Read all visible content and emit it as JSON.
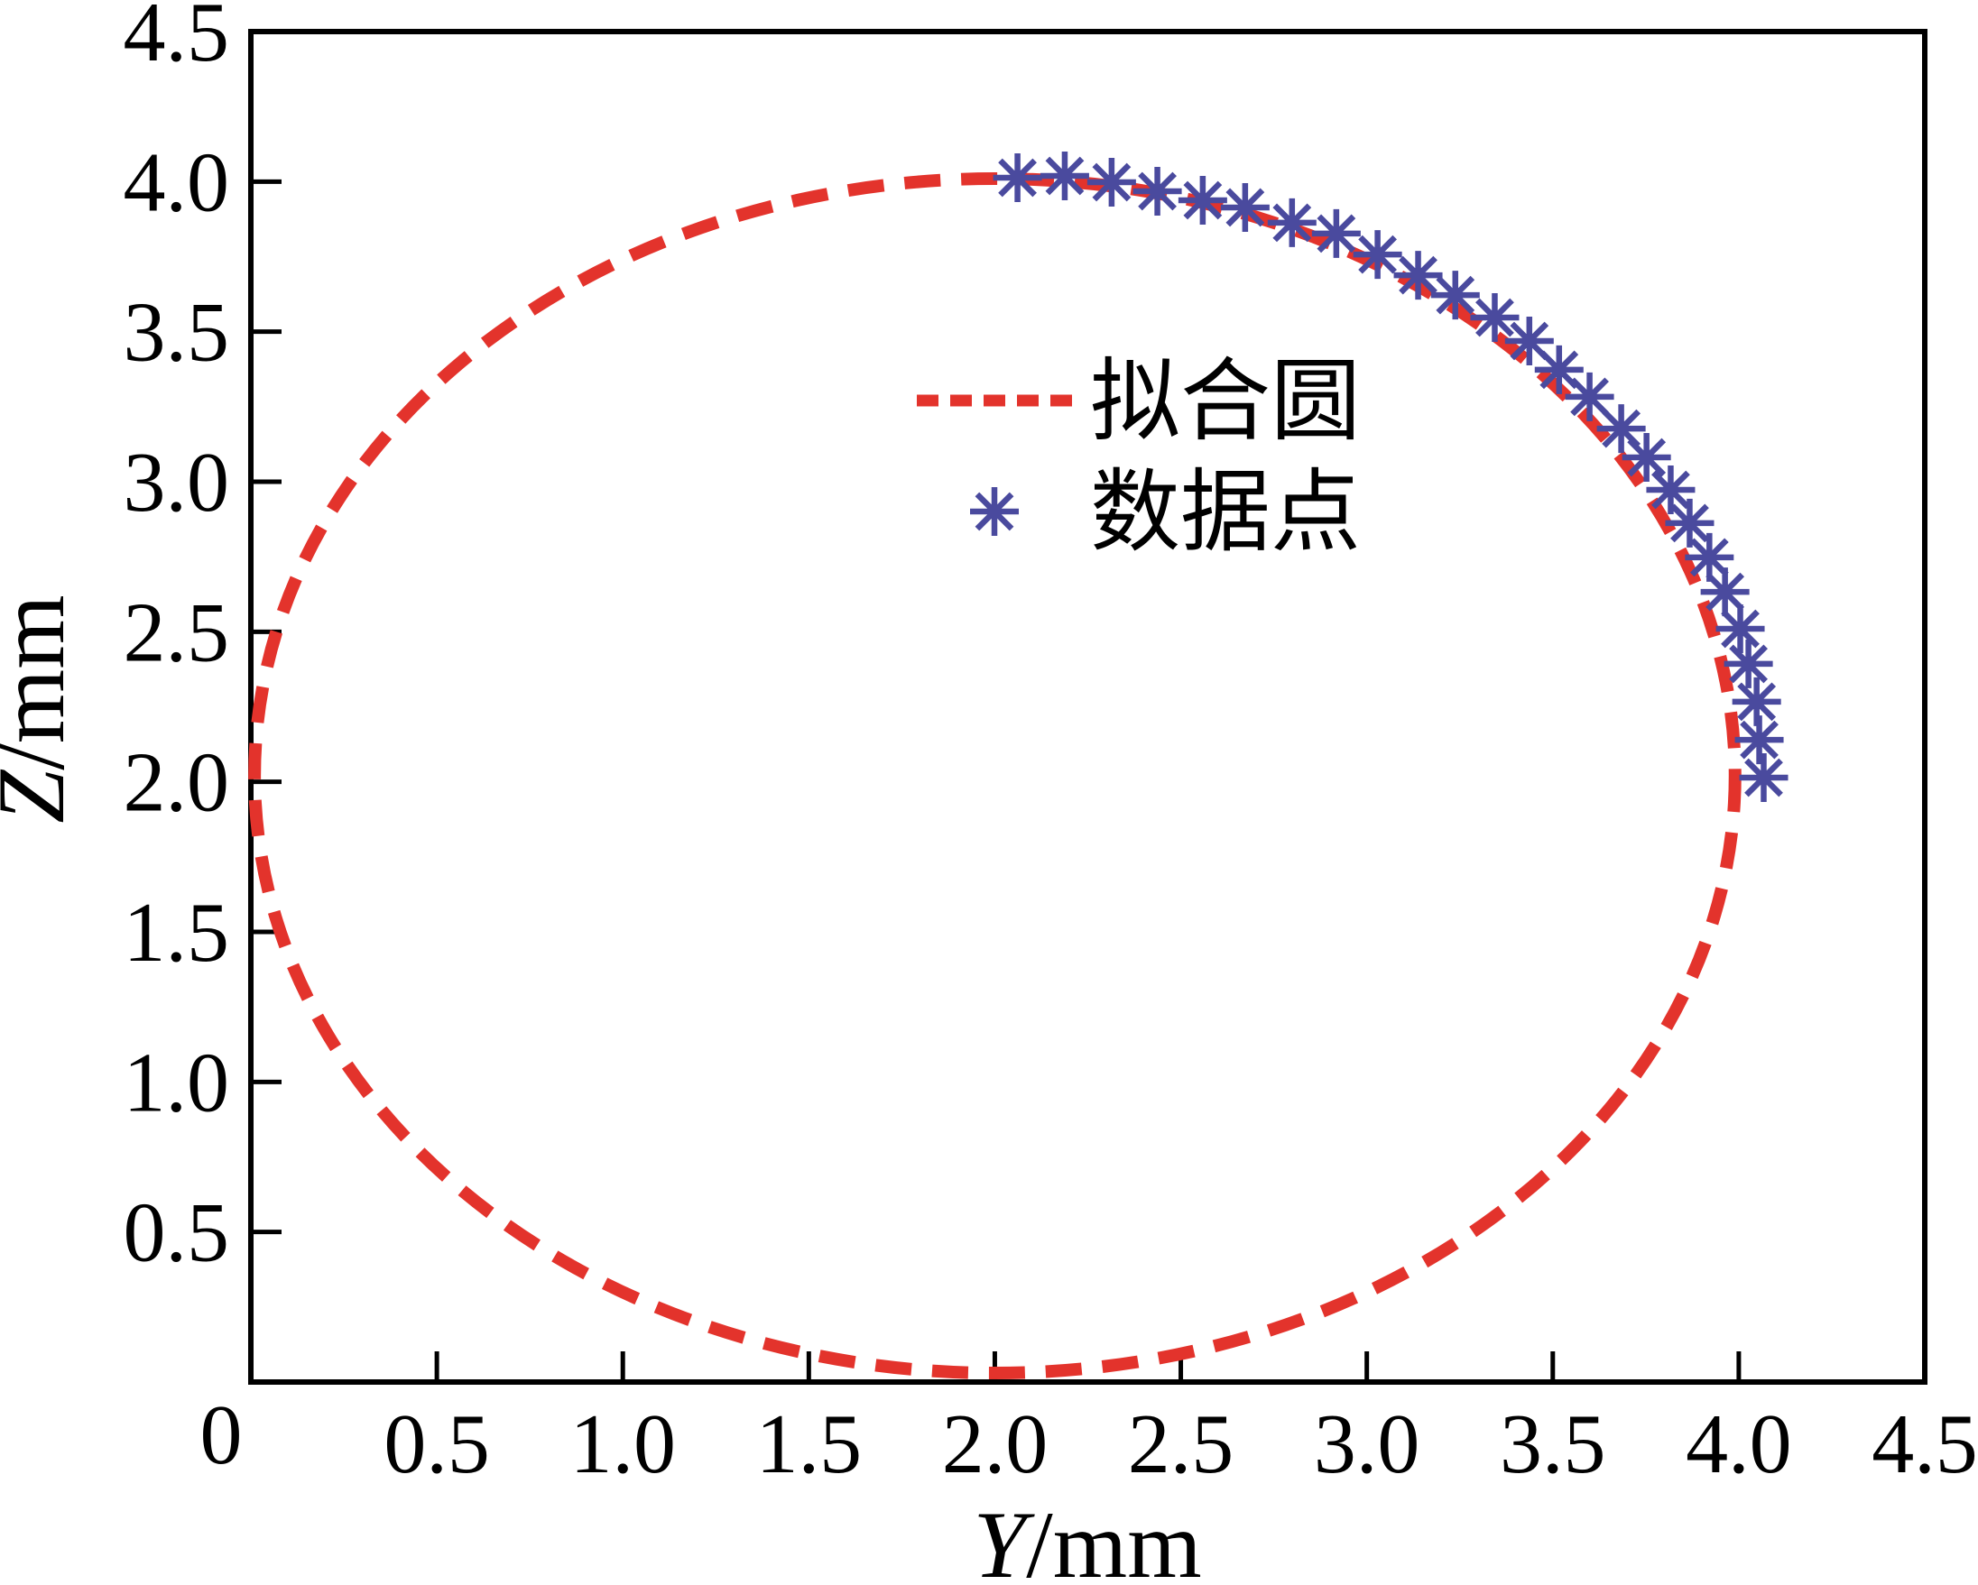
{
  "figure": {
    "xlabel_prefix": "Y",
    "xlabel_suffix": "/mm",
    "ylabel_prefix": "Z",
    "ylabel_suffix": "/mm",
    "origin_label": "0"
  },
  "legend": {
    "items": [
      {
        "label": "拟合圆",
        "marker": "dashed-line"
      },
      {
        "label": "数据点",
        "marker": "asterisk"
      }
    ]
  },
  "colors": {
    "fit_line": "#e3332c",
    "data_marker": "#4a4a9e",
    "axis": "#000000"
  },
  "chart_data": {
    "type": "scatter",
    "title": "",
    "xlabel": "Y/mm",
    "ylabel": "Z/mm",
    "xlim": [
      0,
      4.5
    ],
    "ylim": [
      0,
      4.5
    ],
    "grid": false,
    "legend_position": "upper center, inside plot",
    "x_ticks": {
      "values": [
        0.5,
        1.0,
        1.5,
        2.0,
        2.5,
        3.0,
        3.5,
        4.0,
        4.5
      ],
      "labels": [
        "0.5",
        "1.0",
        "1.5",
        "2.0",
        "2.5",
        "3.0",
        "3.5",
        "4.0",
        "4.5"
      ]
    },
    "y_ticks": {
      "values": [
        0.5,
        1.0,
        1.5,
        2.0,
        2.5,
        3.0,
        3.5,
        4.0,
        4.5
      ],
      "labels": [
        "0.5",
        "1.0",
        "1.5",
        "2.0",
        "2.5",
        "3.0",
        "3.5",
        "4.0",
        "4.5"
      ]
    },
    "series": [
      {
        "name": "拟合圆",
        "type": "line",
        "shape": "circle",
        "line_style": "dashed",
        "color": "#e3332c",
        "center": [
          2.0,
          2.02
        ],
        "radius": 1.99
      },
      {
        "name": "数据点",
        "type": "scatter",
        "marker": "asterisk",
        "color": "#4a4a9e",
        "points": [
          [
            2.061,
            4.013
          ],
          [
            2.188,
            4.019
          ],
          [
            2.314,
            3.998
          ],
          [
            2.437,
            3.968
          ],
          [
            2.559,
            3.938
          ],
          [
            2.673,
            3.914
          ],
          [
            2.799,
            3.863
          ],
          [
            2.918,
            3.827
          ],
          [
            3.029,
            3.757
          ],
          [
            3.138,
            3.688
          ],
          [
            3.238,
            3.622
          ],
          [
            3.344,
            3.547
          ],
          [
            3.437,
            3.469
          ],
          [
            3.517,
            3.373
          ],
          [
            3.599,
            3.283
          ],
          [
            3.684,
            3.177
          ],
          [
            3.752,
            3.081
          ],
          [
            3.817,
            2.973
          ],
          [
            3.868,
            2.862
          ],
          [
            3.921,
            2.748
          ],
          [
            3.963,
            2.633
          ],
          [
            4.004,
            2.51
          ],
          [
            4.026,
            2.393
          ],
          [
            4.048,
            2.267
          ],
          [
            4.055,
            2.14
          ],
          [
            4.067,
            2.014
          ]
        ]
      }
    ]
  }
}
